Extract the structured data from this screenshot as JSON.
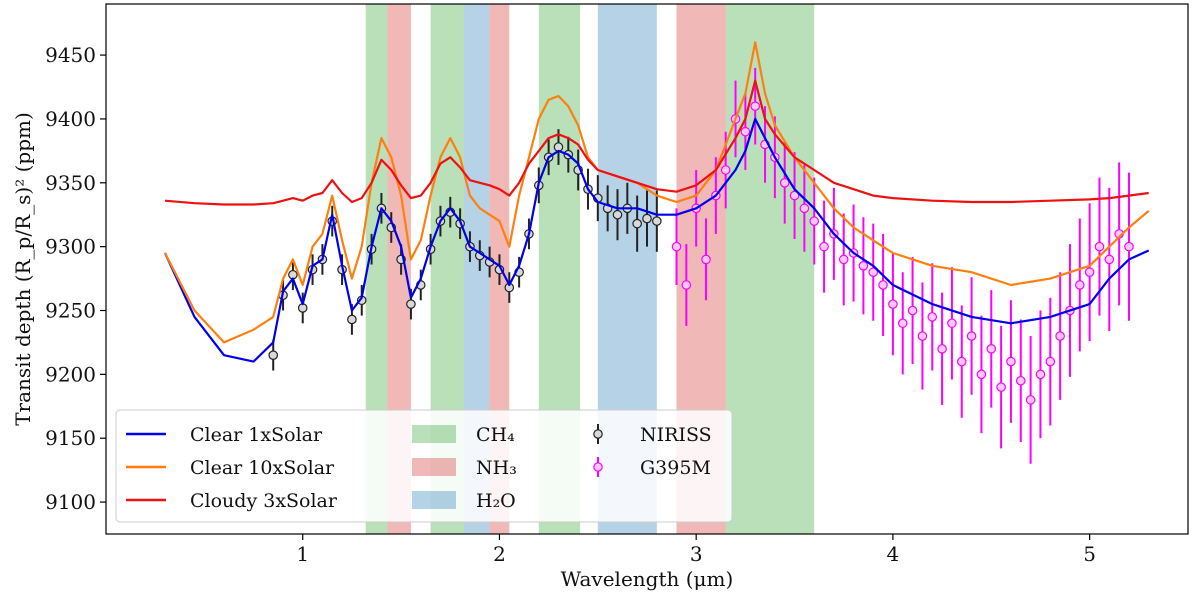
{
  "chart_data": {
    "type": "line",
    "title": "",
    "xlabel": "Wavelength (μm)",
    "ylabel": "Transit depth (R_p/R_s)² (ppm)",
    "xlim": [
      0.0,
      5.5
    ],
    "ylim": [
      9075,
      9490
    ],
    "grid": false,
    "legend_position": "lower-left",
    "x_ticks": [
      1,
      2,
      3,
      4,
      5
    ],
    "x_tick_labels": [
      "1",
      "2",
      "3",
      "4",
      "5"
    ],
    "y_ticks": [
      9100,
      9150,
      9200,
      9250,
      9300,
      9350,
      9400,
      9450
    ],
    "y_tick_labels": [
      "9100",
      "9150",
      "9200",
      "9250",
      "9300",
      "9350",
      "9400",
      "9450"
    ],
    "bands": [
      {
        "species": "CH4",
        "color": "#2ca02c",
        "ranges": [
          [
            1.32,
            1.43
          ],
          [
            1.65,
            1.82
          ],
          [
            2.2,
            2.41
          ],
          [
            3.15,
            3.6
          ]
        ]
      },
      {
        "species": "NH3",
        "color": "#d62728",
        "ranges": [
          [
            1.43,
            1.55
          ],
          [
            1.95,
            2.05
          ],
          [
            2.9,
            3.15
          ]
        ]
      },
      {
        "species": "H2O",
        "color": "#1f77b4",
        "ranges": [
          [
            1.82,
            1.95
          ],
          [
            2.5,
            2.8
          ]
        ]
      }
    ],
    "model_x": [
      0.3,
      0.45,
      0.6,
      0.75,
      0.85,
      0.9,
      0.95,
      1.0,
      1.05,
      1.1,
      1.15,
      1.2,
      1.25,
      1.3,
      1.35,
      1.4,
      1.45,
      1.5,
      1.55,
      1.6,
      1.65,
      1.7,
      1.75,
      1.8,
      1.85,
      1.9,
      1.95,
      2.0,
      2.05,
      2.1,
      2.15,
      2.2,
      2.25,
      2.3,
      2.35,
      2.4,
      2.45,
      2.5,
      2.6,
      2.7,
      2.8,
      2.9,
      3.0,
      3.1,
      3.2,
      3.25,
      3.3,
      3.35,
      3.4,
      3.5,
      3.6,
      3.7,
      3.8,
      3.9,
      4.0,
      4.2,
      4.4,
      4.6,
      4.8,
      5.0,
      5.1,
      5.2,
      5.3
    ],
    "series": [
      {
        "name": "Clear 1xSolar",
        "color": "#0000ee",
        "values": [
          9295,
          9245,
          9215,
          9210,
          9225,
          9265,
          9275,
          9255,
          9285,
          9290,
          9325,
          9285,
          9250,
          9260,
          9300,
          9330,
          9320,
          9300,
          9260,
          9275,
          9300,
          9320,
          9330,
          9320,
          9300,
          9295,
          9290,
          9285,
          9270,
          9285,
          9310,
          9350,
          9370,
          9375,
          9372,
          9365,
          9345,
          9335,
          9330,
          9330,
          9325,
          9325,
          9330,
          9340,
          9360,
          9375,
          9400,
          9385,
          9370,
          9345,
          9330,
          9310,
          9295,
          9285,
          9270,
          9255,
          9245,
          9240,
          9245,
          9255,
          9275,
          9290,
          9297
        ]
      },
      {
        "name": "Clear 10xSolar",
        "color": "#ff7f0e",
        "values": [
          9295,
          9250,
          9225,
          9235,
          9245,
          9275,
          9290,
          9270,
          9300,
          9310,
          9340,
          9305,
          9275,
          9300,
          9350,
          9385,
          9370,
          9340,
          9290,
          9305,
          9340,
          9370,
          9385,
          9370,
          9340,
          9330,
          9325,
          9320,
          9300,
          9340,
          9370,
          9400,
          9415,
          9418,
          9410,
          9395,
          9370,
          9360,
          9355,
          9350,
          9340,
          9335,
          9340,
          9360,
          9400,
          9420,
          9460,
          9420,
          9395,
          9370,
          9350,
          9330,
          9315,
          9305,
          9295,
          9285,
          9280,
          9270,
          9275,
          9285,
          9300,
          9315,
          9328
        ]
      },
      {
        "name": "Cloudy 3xSolar",
        "color": "#ee1111",
        "values": [
          9336,
          9334,
          9333,
          9333,
          9334,
          9336,
          9338,
          9336,
          9340,
          9342,
          9352,
          9342,
          9335,
          9338,
          9350,
          9368,
          9360,
          9348,
          9338,
          9340,
          9350,
          9365,
          9370,
          9362,
          9352,
          9350,
          9348,
          9345,
          9340,
          9350,
          9365,
          9375,
          9385,
          9388,
          9385,
          9380,
          9368,
          9360,
          9355,
          9350,
          9345,
          9343,
          9348,
          9360,
          9385,
          9400,
          9430,
          9400,
          9388,
          9370,
          9360,
          9350,
          9345,
          9340,
          9338,
          9336,
          9335,
          9335,
          9336,
          9337,
          9338,
          9340,
          9342
        ]
      }
    ],
    "observations": [
      {
        "name": "NIRISS",
        "marker_face": "#d9d9d9",
        "marker_edge": "#222222",
        "x": [
          0.85,
          0.9,
          0.95,
          1.0,
          1.05,
          1.1,
          1.15,
          1.2,
          1.25,
          1.3,
          1.35,
          1.4,
          1.45,
          1.5,
          1.55,
          1.6,
          1.65,
          1.7,
          1.75,
          1.8,
          1.85,
          1.9,
          1.95,
          2.0,
          2.05,
          2.1,
          2.15,
          2.2,
          2.25,
          2.3,
          2.35,
          2.4,
          2.45,
          2.5,
          2.55,
          2.6,
          2.65,
          2.7,
          2.75,
          2.8
        ],
        "y": [
          9215,
          9262,
          9278,
          9252,
          9282,
          9290,
          9320,
          9282,
          9243,
          9258,
          9298,
          9330,
          9315,
          9290,
          9255,
          9270,
          9298,
          9320,
          9327,
          9318,
          9300,
          9293,
          9288,
          9282,
          9268,
          9280,
          9310,
          9348,
          9370,
          9378,
          9372,
          9360,
          9345,
          9338,
          9330,
          9325,
          9330,
          9318,
          9322,
          9320
        ],
        "err": [
          12,
          12,
          12,
          12,
          12,
          12,
          12,
          12,
          12,
          12,
          12,
          12,
          12,
          12,
          12,
          12,
          12,
          12,
          12,
          12,
          12,
          12,
          12,
          12,
          12,
          12,
          12,
          14,
          14,
          14,
          14,
          16,
          16,
          18,
          18,
          20,
          20,
          22,
          22,
          24
        ]
      },
      {
        "name": "G395M",
        "marker_face": "#ffc8ff",
        "marker_edge": "#ff00ff",
        "x": [
          2.9,
          2.95,
          3.0,
          3.05,
          3.1,
          3.15,
          3.2,
          3.25,
          3.3,
          3.35,
          3.4,
          3.45,
          3.5,
          3.55,
          3.6,
          3.65,
          3.7,
          3.75,
          3.8,
          3.85,
          3.9,
          3.95,
          4.0,
          4.05,
          4.1,
          4.15,
          4.2,
          4.25,
          4.3,
          4.35,
          4.4,
          4.45,
          4.5,
          4.55,
          4.6,
          4.65,
          4.7,
          4.75,
          4.8,
          4.85,
          4.9,
          4.95,
          5.0,
          5.05,
          5.1,
          5.15,
          5.2
        ],
        "y": [
          9300,
          9270,
          9330,
          9290,
          9340,
          9360,
          9400,
          9390,
          9410,
          9380,
          9370,
          9350,
          9340,
          9330,
          9320,
          9300,
          9310,
          9290,
          9295,
          9285,
          9280,
          9270,
          9255,
          9240,
          9250,
          9230,
          9245,
          9220,
          9240,
          9210,
          9230,
          9200,
          9220,
          9190,
          9210,
          9195,
          9180,
          9200,
          9210,
          9230,
          9250,
          9270,
          9280,
          9300,
          9290,
          9310,
          9300
        ],
        "err": [
          30,
          32,
          30,
          32,
          30,
          30,
          30,
          30,
          30,
          30,
          32,
          32,
          34,
          34,
          34,
          36,
          36,
          36,
          38,
          38,
          38,
          40,
          40,
          40,
          42,
          42,
          42,
          44,
          44,
          44,
          46,
          46,
          46,
          48,
          48,
          48,
          50,
          50,
          50,
          50,
          52,
          52,
          54,
          54,
          56,
          56,
          58
        ]
      }
    ],
    "legend": {
      "lines": [
        "Clear 1xSolar",
        "Clear 10xSolar",
        "Cloudy 3xSolar"
      ],
      "bands": [
        "CH₄",
        "NH₃",
        "H₂O"
      ],
      "observations": [
        "NIRISS",
        "G395M"
      ]
    }
  }
}
